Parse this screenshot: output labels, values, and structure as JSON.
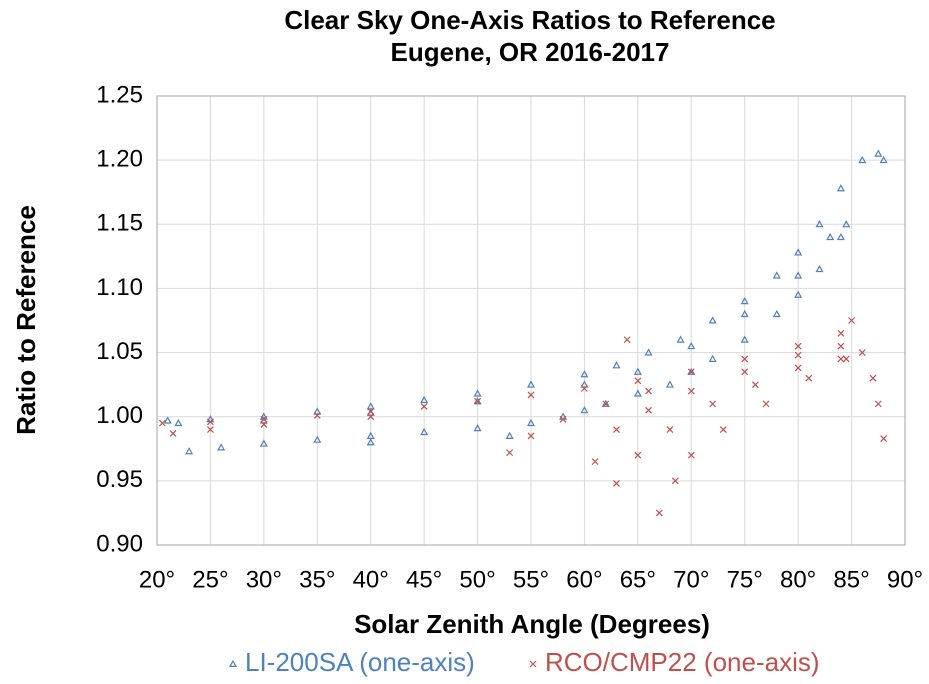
{
  "chart_data": {
    "type": "scatter",
    "title": "Clear Sky One-Axis Ratios to Reference",
    "subtitle": "Eugene, OR 2016-2017",
    "x_label": "Solar Zenith Angle (Degrees)",
    "y_label": "Ratio to Reference",
    "xlim": [
      20,
      90
    ],
    "ylim": [
      0.9,
      1.25
    ],
    "xticks": [
      {
        "value": 20,
        "label": "20°"
      },
      {
        "value": 25,
        "label": "25°"
      },
      {
        "value": 30,
        "label": "30°"
      },
      {
        "value": 35,
        "label": "35°"
      },
      {
        "value": 40,
        "label": "40°"
      },
      {
        "value": 45,
        "label": "45°"
      },
      {
        "value": 50,
        "label": "50°"
      },
      {
        "value": 55,
        "label": "55°"
      },
      {
        "value": 60,
        "label": "60°"
      },
      {
        "value": 65,
        "label": "65°"
      },
      {
        "value": 70,
        "label": "70°"
      },
      {
        "value": 75,
        "label": "75°"
      },
      {
        "value": 80,
        "label": "80°"
      },
      {
        "value": 85,
        "label": "85°"
      },
      {
        "value": 90,
        "label": "90°"
      }
    ],
    "yticks": [
      {
        "value": 0.9,
        "label": "0.90"
      },
      0.95,
      {
        "value": 1.0,
        "label": "1.00"
      },
      1.05,
      {
        "value": 1.1,
        "label": "1.10"
      },
      1.15,
      {
        "value": 1.2,
        "label": "1.20"
      },
      1.25
    ],
    "grid": true,
    "legend": "bottom",
    "series": [
      {
        "name": "LI-200SA (one-axis)",
        "color": "#4f81bd",
        "marker": "triangle",
        "x": [
          23,
          26,
          30,
          35,
          40,
          45,
          50,
          53,
          55,
          58,
          60,
          62,
          65,
          68,
          70,
          72,
          75,
          78,
          80,
          82,
          84,
          21,
          25,
          30,
          35,
          40,
          45,
          50,
          55,
          60,
          63,
          66,
          69,
          72,
          75,
          78,
          80,
          82,
          84,
          86,
          87.5,
          88,
          22,
          30,
          40,
          50,
          60,
          65,
          70,
          75,
          80,
          83,
          84.5,
          40
        ],
        "values": [
          0.973,
          0.976,
          0.979,
          0.982,
          0.985,
          0.988,
          0.991,
          0.985,
          0.995,
          1.0,
          1.005,
          1.01,
          1.018,
          1.025,
          1.035,
          1.045,
          1.06,
          1.08,
          1.095,
          1.115,
          1.14,
          0.997,
          0.998,
          1.0,
          1.004,
          1.008,
          1.013,
          1.018,
          1.025,
          1.033,
          1.04,
          1.05,
          1.06,
          1.075,
          1.09,
          1.11,
          1.128,
          1.15,
          1.178,
          1.2,
          1.205,
          1.2,
          0.995,
          0.997,
          1.003,
          1.012,
          1.025,
          1.035,
          1.055,
          1.08,
          1.11,
          1.14,
          1.15,
          0.98
        ]
      },
      {
        "name": "RCO/CMP22 (one-axis)",
        "color": "#c0504d",
        "marker": "x",
        "x": [
          20.5,
          25,
          30,
          35,
          40,
          45,
          50,
          55,
          60,
          65,
          70,
          75,
          80,
          84,
          85,
          21.5,
          25,
          30,
          40,
          53,
          55,
          58,
          62,
          66,
          61,
          63,
          66,
          70,
          75,
          80,
          84,
          63,
          65,
          68,
          72,
          76,
          80,
          84,
          67,
          68.5,
          70,
          73,
          77,
          81,
          84.5,
          86,
          87,
          87.5,
          88,
          64
        ],
        "values": [
          0.995,
          0.996,
          0.998,
          1.001,
          1.004,
          1.008,
          1.012,
          1.017,
          1.022,
          1.028,
          1.035,
          1.045,
          1.055,
          1.065,
          1.075,
          0.987,
          0.99,
          0.994,
          1.0,
          0.972,
          0.985,
          0.998,
          1.01,
          1.02,
          0.965,
          0.99,
          1.005,
          1.02,
          1.035,
          1.048,
          1.055,
          0.948,
          0.97,
          0.99,
          1.01,
          1.025,
          1.038,
          1.045,
          0.925,
          0.95,
          0.97,
          0.99,
          1.01,
          1.03,
          1.045,
          1.05,
          1.03,
          1.01,
          0.983,
          1.06
        ]
      }
    ]
  }
}
